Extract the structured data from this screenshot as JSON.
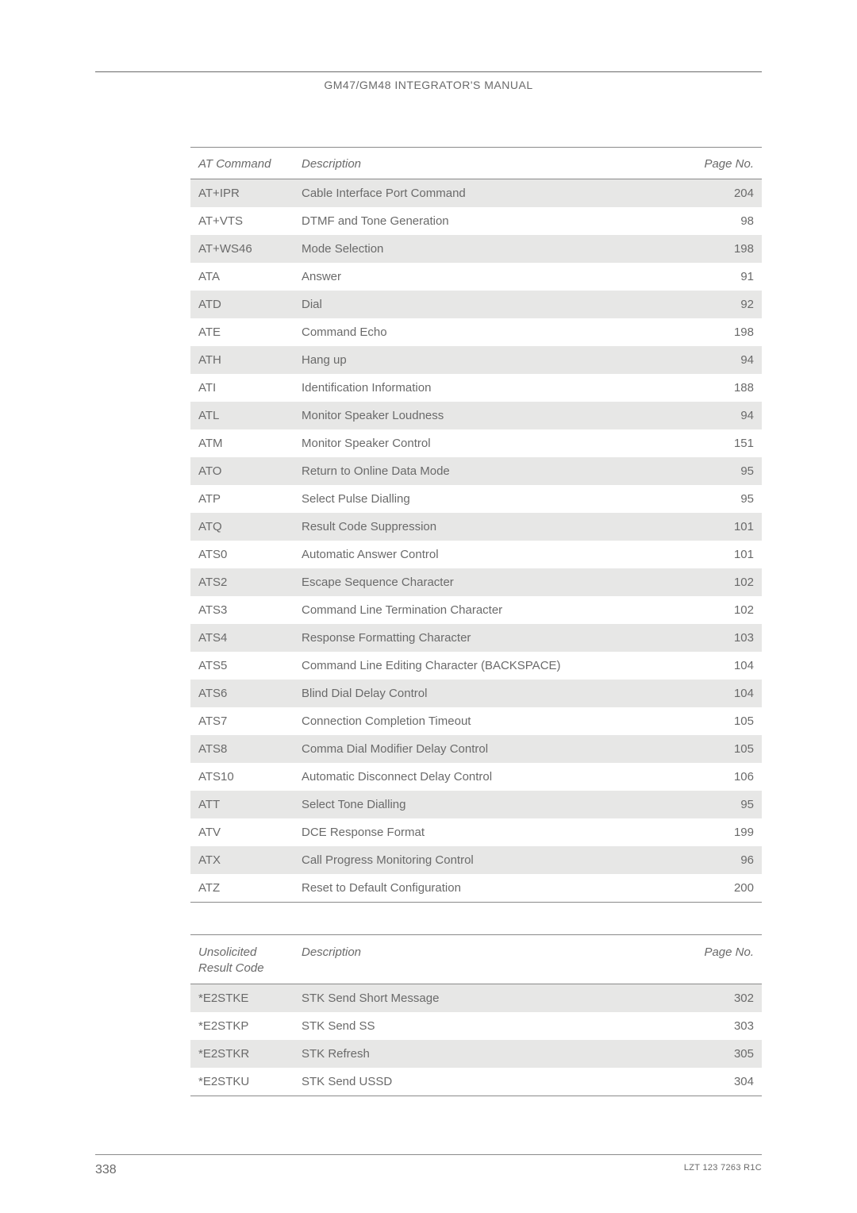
{
  "header": {
    "title": "GM47/GM48 INTEGRATOR'S MANUAL"
  },
  "table1": {
    "columns": [
      "AT Command",
      "Description",
      "Page No."
    ],
    "col_widths": [
      "130px",
      "auto",
      "90px"
    ],
    "rows": [
      {
        "cmd": "AT+IPR",
        "desc": "Cable Interface Port Command",
        "page": "204",
        "shaded": true
      },
      {
        "cmd": "AT+VTS",
        "desc": "DTMF and Tone Generation",
        "page": "98",
        "shaded": false
      },
      {
        "cmd": "AT+WS46",
        "desc": "Mode Selection",
        "page": "198",
        "shaded": true
      },
      {
        "cmd": "ATA",
        "desc": "Answer",
        "page": "91",
        "shaded": false
      },
      {
        "cmd": "ATD",
        "desc": "Dial",
        "page": "92",
        "shaded": true
      },
      {
        "cmd": "ATE",
        "desc": "Command Echo",
        "page": "198",
        "shaded": false
      },
      {
        "cmd": "ATH",
        "desc": "Hang up",
        "page": "94",
        "shaded": true
      },
      {
        "cmd": "ATI",
        "desc": "Identification Information",
        "page": "188",
        "shaded": false
      },
      {
        "cmd": "ATL",
        "desc": "Monitor Speaker Loudness",
        "page": "94",
        "shaded": true
      },
      {
        "cmd": "ATM",
        "desc": "Monitor Speaker Control",
        "page": "151",
        "shaded": false
      },
      {
        "cmd": "ATO",
        "desc": "Return to Online Data Mode",
        "page": "95",
        "shaded": true
      },
      {
        "cmd": "ATP",
        "desc": "Select Pulse Dialling",
        "page": "95",
        "shaded": false
      },
      {
        "cmd": "ATQ",
        "desc": "Result Code Suppression",
        "page": "101",
        "shaded": true
      },
      {
        "cmd": "ATS0",
        "desc": "Automatic Answer Control",
        "page": "101",
        "shaded": false
      },
      {
        "cmd": "ATS2",
        "desc": "Escape Sequence Character",
        "page": "102",
        "shaded": true
      },
      {
        "cmd": "ATS3",
        "desc": "Command Line Termination Character",
        "page": "102",
        "shaded": false
      },
      {
        "cmd": "ATS4",
        "desc": "Response Formatting Character",
        "page": "103",
        "shaded": true
      },
      {
        "cmd": "ATS5",
        "desc": "Command Line Editing Character (BACKSPACE)",
        "page": "104",
        "shaded": false
      },
      {
        "cmd": "ATS6",
        "desc": "Blind Dial Delay Control",
        "page": "104",
        "shaded": true
      },
      {
        "cmd": "ATS7",
        "desc": "Connection Completion Timeout",
        "page": "105",
        "shaded": false
      },
      {
        "cmd": "ATS8",
        "desc": "Comma Dial Modifier Delay Control",
        "page": "105",
        "shaded": true
      },
      {
        "cmd": "ATS10",
        "desc": "Automatic Disconnect Delay Control",
        "page": "106",
        "shaded": false
      },
      {
        "cmd": "ATT",
        "desc": "Select Tone Dialling",
        "page": "95",
        "shaded": true
      },
      {
        "cmd": "ATV",
        "desc": "DCE Response Format",
        "page": "199",
        "shaded": false
      },
      {
        "cmd": "ATX",
        "desc": "Call Progress Monitoring Control",
        "page": "96",
        "shaded": true
      },
      {
        "cmd": "ATZ",
        "desc": "Reset to Default Configuration",
        "page": "200",
        "shaded": false
      }
    ]
  },
  "table2": {
    "columns": [
      "Unsolicited\nResult Code",
      "Description",
      "Page No."
    ],
    "col_widths": [
      "130px",
      "auto",
      "90px"
    ],
    "rows": [
      {
        "cmd": "*E2STKE",
        "desc": "STK Send Short Message",
        "page": "302",
        "shaded": true
      },
      {
        "cmd": "*E2STKP",
        "desc": "STK Send SS",
        "page": "303",
        "shaded": false
      },
      {
        "cmd": "*E2STKR",
        "desc": "STK Refresh",
        "page": "305",
        "shaded": true
      },
      {
        "cmd": "*E2STKU",
        "desc": "STK Send USSD",
        "page": "304",
        "shaded": false
      }
    ]
  },
  "footer": {
    "page_number": "338",
    "doc_code": "LZT 123 7263 R1C"
  },
  "colors": {
    "text": "#6a6a6a",
    "rule": "#8a8a8a",
    "shade": "#e7e7e6",
    "bg": "#ffffff"
  }
}
